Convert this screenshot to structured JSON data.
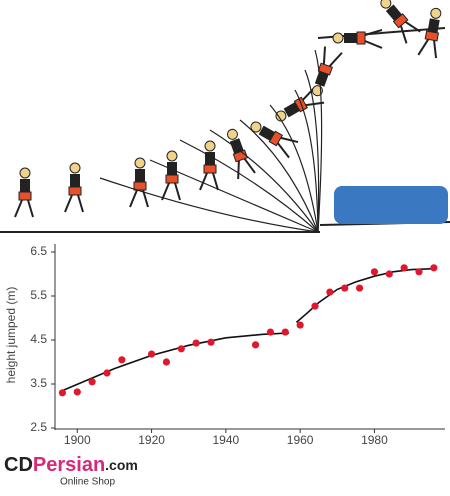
{
  "chart_data": {
    "type": "scatter",
    "y_label": "height jumped (m)",
    "x": [
      1896,
      1900,
      1904,
      1908,
      1912,
      1920,
      1924,
      1928,
      1932,
      1936,
      1948,
      1952,
      1956,
      1960,
      1964,
      1968,
      1972,
      1976,
      1980,
      1984,
      1988,
      1992,
      1996
    ],
    "values": [
      3.3,
      3.32,
      3.55,
      3.75,
      4.05,
      4.18,
      4.0,
      4.3,
      4.43,
      4.45,
      4.39,
      4.68,
      4.68,
      4.84,
      5.27,
      5.59,
      5.68,
      5.68,
      6.05,
      6.0,
      6.14,
      6.05,
      6.14
    ],
    "color": "#e0182d",
    "trend": {
      "color": "#111111",
      "x": [
        1896,
        1903,
        1910,
        1920,
        1930,
        1940,
        1950,
        1957,
        1958,
        1959,
        1962,
        1965,
        1970,
        1975,
        1980,
        1985,
        1990,
        1996
      ],
      "values": [
        3.35,
        3.6,
        3.85,
        4.15,
        4.38,
        4.55,
        4.63,
        4.66,
        null,
        4.9,
        5.12,
        5.35,
        5.65,
        5.82,
        5.95,
        6.05,
        6.1,
        6.12
      ]
    },
    "xlim": [
      1894,
      1999
    ],
    "ylim": [
      2.5,
      6.5
    ],
    "xticks": [
      1900,
      1920,
      1940,
      1960,
      1980
    ],
    "yticks": [
      2.5,
      3.5,
      4.5,
      5.5,
      6.5
    ],
    "watermark": {
      "brand_a": "CD",
      "brand_b": "Persian",
      "brand_c": ".com",
      "sub": "Online Shop"
    }
  }
}
